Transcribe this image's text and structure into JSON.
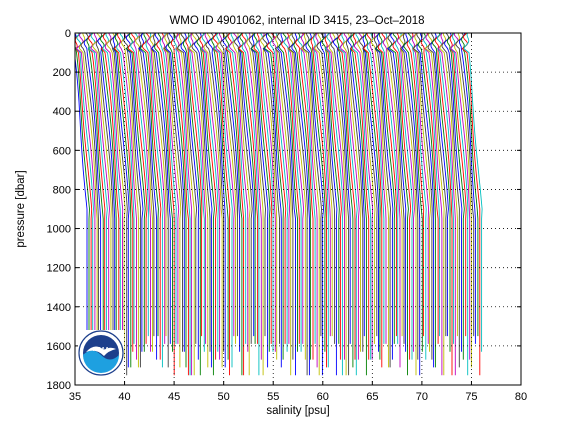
{
  "chart_data": {
    "type": "line",
    "title": "WMO ID 4901062, internal ID 3415, 23–Oct–2018",
    "xlabel": "salinity [psu]",
    "ylabel": "pressure [dbar]",
    "xlim": [
      35,
      80
    ],
    "ylim": [
      1800,
      0
    ],
    "y_reversed": true,
    "xticks": [
      35,
      40,
      45,
      50,
      55,
      60,
      65,
      70,
      75,
      80
    ],
    "yticks": [
      0,
      200,
      400,
      600,
      800,
      1000,
      1200,
      1400,
      1600,
      1800
    ],
    "grid": true,
    "grid_style": "dotted",
    "legend": "none",
    "profile_count": 200,
    "profile_offset": 0.2,
    "profile_start_salinity": 36.2,
    "profile_end_salinity": 76.0,
    "deep_max_pressure": 1750,
    "series_colors": [
      "#0000ff",
      "#008000",
      "#ff0000",
      "#00bfbf",
      "#bf00bf",
      "#bfbf00",
      "#404040"
    ],
    "logo_text": "NOAA",
    "logo_colors": {
      "sky": "#1d3f8c",
      "sea": "#1ea0e0",
      "bird": "#ffffff"
    }
  }
}
